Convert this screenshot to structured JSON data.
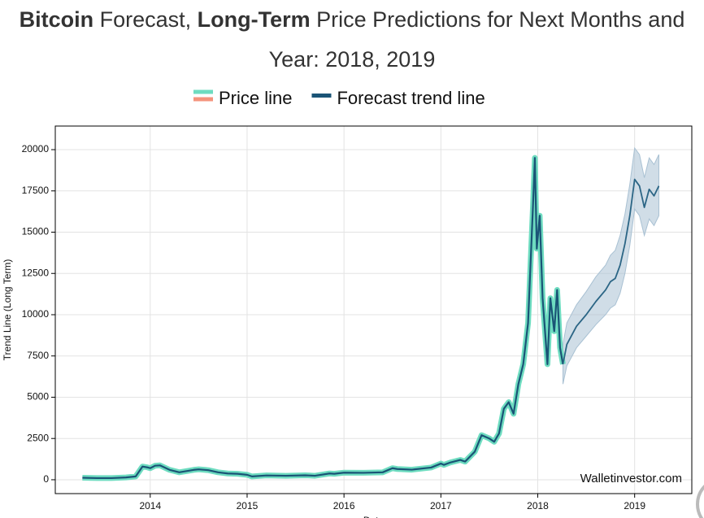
{
  "chart_data": {
    "type": "line",
    "title": [
      "Bitcoin",
      " Forecast, ",
      "Long-Term",
      " Price Predictions for Next Months and Year: 2018, 2019"
    ],
    "title_bold": [
      true,
      false,
      true,
      false
    ],
    "y_label": "Trend Line (Long Term)",
    "x_label": "Date",
    "annotation": "Walletinvestor.com",
    "xlim": [
      2013.02,
      2019.59
    ],
    "ylim": [
      -840,
      21430
    ],
    "xticks": [
      2014,
      2015,
      2016,
      2017,
      2018,
      2019
    ],
    "yticks": [
      0,
      2500,
      5000,
      7500,
      10000,
      12500,
      15000,
      17500,
      20000
    ],
    "grid": true,
    "legend": "top",
    "series": [
      {
        "name": "Price line",
        "color": "#6edcc0",
        "legend_colors": [
          "#6edcc0",
          "#f4937c"
        ],
        "x": [
          2013.3,
          2013.45,
          2013.6,
          2013.75,
          2013.85,
          2013.92,
          2013.97,
          2014.0,
          2014.05,
          2014.1,
          2014.2,
          2014.3,
          2014.45,
          2014.5,
          2014.6,
          2014.7,
          2014.8,
          2014.9,
          2015.0,
          2015.05,
          2015.2,
          2015.4,
          2015.6,
          2015.7,
          2015.85,
          2015.9,
          2016.0,
          2016.2,
          2016.4,
          2016.5,
          2016.55,
          2016.7,
          2016.9,
          2017.0,
          2017.03,
          2017.1,
          2017.2,
          2017.25,
          2017.35,
          2017.42,
          2017.5,
          2017.55,
          2017.6,
          2017.65,
          2017.7,
          2017.75,
          2017.8,
          2017.85,
          2017.9,
          2017.95,
          2017.97,
          2017.99,
          2018.02,
          2018.05,
          2018.1,
          2018.13,
          2018.17,
          2018.2,
          2018.23,
          2018.26
        ],
        "values": [
          120,
          100,
          100,
          140,
          200,
          800,
          750,
          700,
          850,
          870,
          600,
          450,
          600,
          630,
          580,
          450,
          380,
          360,
          300,
          200,
          260,
          240,
          270,
          240,
          380,
          360,
          430,
          420,
          450,
          700,
          650,
          610,
          740,
          980,
          900,
          1050,
          1200,
          1100,
          1700,
          2700,
          2500,
          2300,
          2800,
          4300,
          4700,
          4000,
          5800,
          7000,
          9500,
          16500,
          19500,
          14000,
          16000,
          11000,
          7000,
          11000,
          9000,
          11500,
          8000,
          7000
        ]
      },
      {
        "name": "Forecast trend line",
        "color": "#1a5476",
        "x": [
          2013.3,
          2013.45,
          2013.6,
          2013.75,
          2013.85,
          2013.92,
          2013.97,
          2014.0,
          2014.05,
          2014.1,
          2014.2,
          2014.3,
          2014.45,
          2014.5,
          2014.6,
          2014.7,
          2014.8,
          2014.9,
          2015.0,
          2015.05,
          2015.2,
          2015.4,
          2015.6,
          2015.7,
          2015.85,
          2015.9,
          2016.0,
          2016.2,
          2016.4,
          2016.5,
          2016.55,
          2016.7,
          2016.9,
          2017.0,
          2017.03,
          2017.1,
          2017.2,
          2017.25,
          2017.35,
          2017.42,
          2017.5,
          2017.55,
          2017.6,
          2017.65,
          2017.7,
          2017.75,
          2017.8,
          2017.85,
          2017.9,
          2017.95,
          2017.97,
          2017.99,
          2018.02,
          2018.05,
          2018.1,
          2018.13,
          2018.17,
          2018.2,
          2018.23,
          2018.26
        ],
        "values": [
          120,
          100,
          100,
          140,
          200,
          800,
          750,
          700,
          850,
          870,
          600,
          450,
          600,
          630,
          580,
          450,
          380,
          360,
          300,
          200,
          260,
          240,
          270,
          240,
          380,
          360,
          430,
          420,
          450,
          700,
          650,
          610,
          740,
          980,
          900,
          1050,
          1200,
          1100,
          1700,
          2700,
          2500,
          2300,
          2800,
          4300,
          4700,
          4000,
          5800,
          7000,
          9500,
          16500,
          19500,
          14000,
          16000,
          11000,
          7000,
          11000,
          9000,
          11500,
          8000,
          7000
        ]
      },
      {
        "color": "#2b6585",
        "x": [
          2018.26,
          2018.3,
          2018.4,
          2018.5,
          2018.6,
          2018.7,
          2018.75,
          2018.8,
          2018.85,
          2018.9,
          2018.95,
          2019.0,
          2019.05,
          2019.1,
          2019.15,
          2019.2,
          2019.25
        ],
        "values": [
          7000,
          8200,
          9300,
          10000,
          10800,
          11500,
          12000,
          12200,
          13000,
          14300,
          16000,
          18200,
          17800,
          16500,
          17600,
          17200,
          17800
        ]
      }
    ],
    "band": {
      "color": "#a9c1d3",
      "x": [
        2018.26,
        2018.3,
        2018.4,
        2018.5,
        2018.6,
        2018.7,
        2018.75,
        2018.8,
        2018.85,
        2018.9,
        2018.95,
        2019.0,
        2019.05,
        2019.1,
        2019.15,
        2019.2,
        2019.25
      ],
      "lower": [
        5800,
        6900,
        8000,
        8700,
        9400,
        10000,
        10400,
        10600,
        11300,
        12500,
        14200,
        16400,
        16000,
        14800,
        15800,
        15400,
        16000
      ],
      "upper": [
        8200,
        9500,
        10600,
        11400,
        12300,
        13000,
        13600,
        13900,
        14800,
        16100,
        17900,
        20100,
        19700,
        18300,
        19500,
        19100,
        19700
      ]
    }
  }
}
